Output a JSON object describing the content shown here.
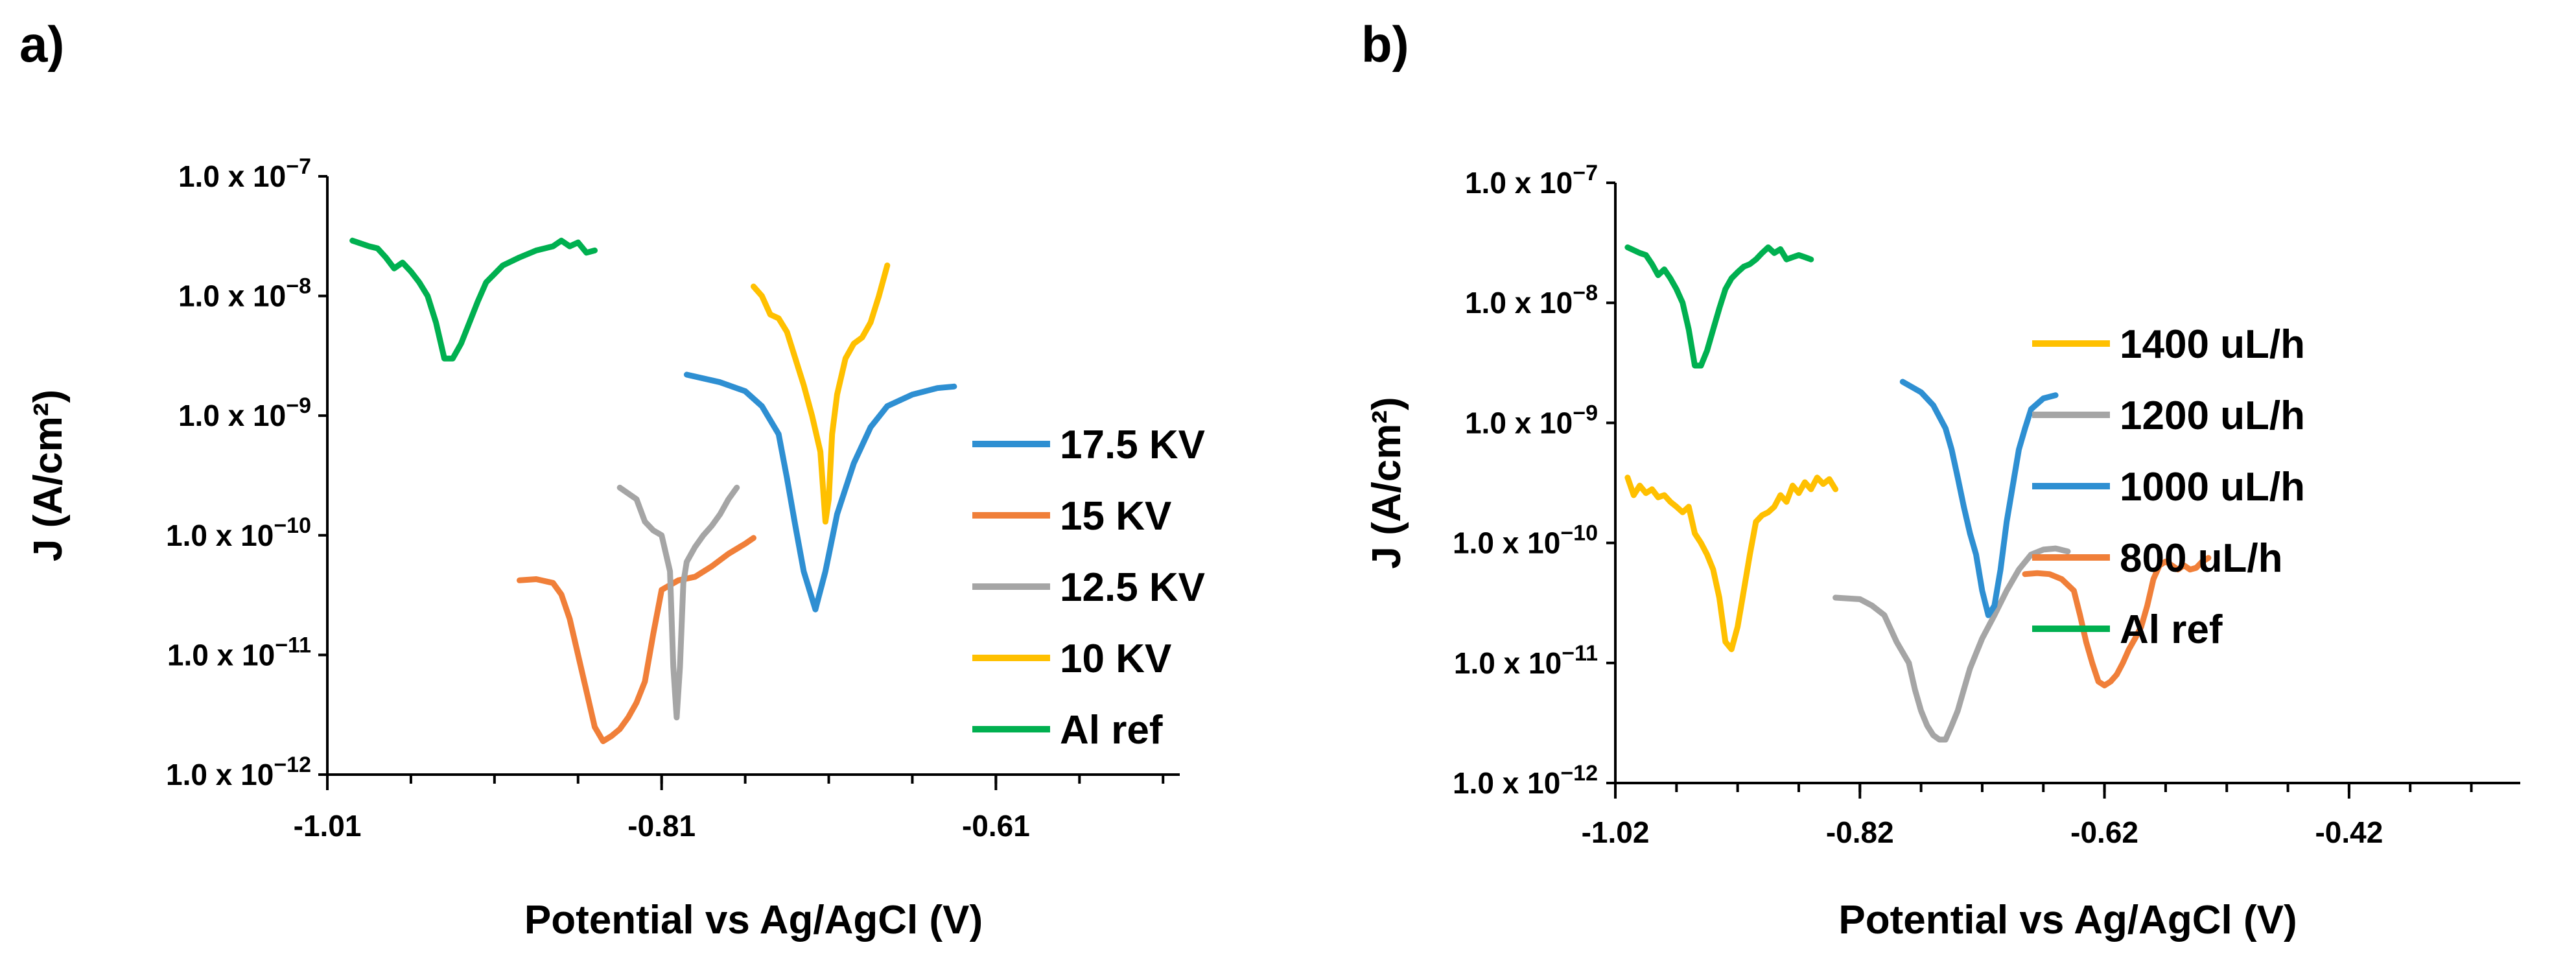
{
  "chart_data": [
    {
      "type": "line",
      "panel_label": "a)",
      "xlabel": "Potential vs Ag/AgCl (V)",
      "ylabel": "J (A/cm²)",
      "xlim": [
        -1.01,
        -0.5
      ],
      "xticks": [
        -1.01,
        -0.81,
        -0.61
      ],
      "xtick_labels": [
        "-1.01",
        "-0.81",
        "-0.61"
      ],
      "yscale": "log",
      "ylim": [
        1e-12,
        1e-07
      ],
      "ytick_labels": [
        {
          "value": 1e-07,
          "mantissa": "1.0 x 10",
          "exp": "−7"
        },
        {
          "value": 1e-08,
          "mantissa": "1.0 x 10",
          "exp": "−8"
        },
        {
          "value": 1e-09,
          "mantissa": "1.0 x 10",
          "exp": "−9"
        },
        {
          "value": 1e-10,
          "mantissa": "1.0 x 10",
          "exp": "−10"
        },
        {
          "value": 1e-11,
          "mantissa": "1.0 x 10",
          "exp": "−11"
        },
        {
          "value": 1e-12,
          "mantissa": "1.0 x 10",
          "exp": "−12"
        }
      ],
      "legend_position": "right",
      "series": [
        {
          "name": "17.5 KV",
          "color": "#2E8FD2",
          "x": [
            -0.795,
            -0.775,
            -0.76,
            -0.75,
            -0.74,
            -0.735,
            -0.73,
            -0.725,
            -0.718,
            -0.712,
            -0.705,
            -0.695,
            -0.685,
            -0.675,
            -0.66,
            -0.645,
            -0.635
          ],
          "y": [
            2.2e-09,
            1.9e-09,
            1.6e-09,
            1.2e-09,
            7e-10,
            3e-10,
            1.2e-10,
            5e-11,
            2.4e-11,
            5e-11,
            1.5e-10,
            4e-10,
            8e-10,
            1.2e-09,
            1.5e-09,
            1.7e-09,
            1.75e-09
          ]
        },
        {
          "name": "15 KV",
          "color": "#F07F39",
          "x": [
            -0.895,
            -0.885,
            -0.875,
            -0.87,
            -0.865,
            -0.86,
            -0.855,
            -0.85,
            -0.845,
            -0.84,
            -0.835,
            -0.83,
            -0.825,
            -0.82,
            -0.815,
            -0.81,
            -0.8,
            -0.79,
            -0.78,
            -0.77,
            -0.76,
            -0.755
          ],
          "y": [
            4.2e-11,
            4.3e-11,
            4e-11,
            3.2e-11,
            2e-11,
            1e-11,
            5e-12,
            2.5e-12,
            1.9e-12,
            2.1e-12,
            2.4e-12,
            3e-12,
            4e-12,
            6e-12,
            1.5e-11,
            3.5e-11,
            4.2e-11,
            4.5e-11,
            5.5e-11,
            7e-11,
            8.5e-11,
            9.5e-11
          ]
        },
        {
          "name": "12.5 KV",
          "color": "#A5A5A5",
          "x": [
            -0.835,
            -0.825,
            -0.82,
            -0.815,
            -0.81,
            -0.805,
            -0.803,
            -0.801,
            -0.799,
            -0.797,
            -0.795,
            -0.79,
            -0.785,
            -0.78,
            -0.775,
            -0.77,
            -0.765
          ],
          "y": [
            2.5e-10,
            2e-10,
            1.3e-10,
            1.1e-10,
            1e-10,
            5e-11,
            8e-12,
            3e-12,
            8e-12,
            4e-11,
            6e-11,
            8e-11,
            1e-10,
            1.2e-10,
            1.5e-10,
            2e-10,
            2.5e-10
          ]
        },
        {
          "name": "10 KV",
          "color": "#FFC000",
          "x": [
            -0.755,
            -0.75,
            -0.745,
            -0.74,
            -0.735,
            -0.73,
            -0.725,
            -0.72,
            -0.715,
            -0.712,
            -0.71,
            -0.708,
            -0.705,
            -0.7,
            -0.695,
            -0.69,
            -0.685,
            -0.68,
            -0.675
          ],
          "y": [
            1.2e-08,
            1e-08,
            7e-09,
            6.5e-09,
            5e-09,
            3e-09,
            1.8e-09,
            1e-09,
            5e-10,
            1.3e-10,
            2e-10,
            7e-10,
            1.5e-09,
            3e-09,
            4e-09,
            4.5e-09,
            6e-09,
            1e-08,
            1.8e-08
          ]
        },
        {
          "name": "Al ref",
          "color": "#00B050",
          "x": [
            -0.995,
            -0.985,
            -0.98,
            -0.975,
            -0.97,
            -0.965,
            -0.96,
            -0.955,
            -0.95,
            -0.945,
            -0.94,
            -0.935,
            -0.93,
            -0.925,
            -0.92,
            -0.915,
            -0.905,
            -0.895,
            -0.885,
            -0.875,
            -0.87,
            -0.865,
            -0.86,
            -0.855,
            -0.85
          ],
          "y": [
            2.9e-08,
            2.6e-08,
            2.5e-08,
            2.1e-08,
            1.7e-08,
            1.9e-08,
            1.6e-08,
            1.3e-08,
            1e-08,
            6e-09,
            3e-09,
            3e-09,
            4e-09,
            6e-09,
            9e-09,
            1.3e-08,
            1.8e-08,
            2.1e-08,
            2.4e-08,
            2.6e-08,
            2.9e-08,
            2.6e-08,
            2.8e-08,
            2.3e-08,
            2.4e-08
          ]
        }
      ],
      "legend_order": [
        "17.5 KV",
        "15 KV",
        "12.5 KV",
        "10 KV",
        "Al ref"
      ]
    },
    {
      "type": "line",
      "panel_label": "b)",
      "xlabel": "Potential vs Ag/AgCl (V)",
      "ylabel": "J (A/cm²)",
      "xlim": [
        -1.02,
        -0.28
      ],
      "xticks": [
        -1.02,
        -0.82,
        -0.62,
        -0.42
      ],
      "xtick_labels": [
        "-1.02",
        "-0.82",
        "-0.62",
        "-0.42"
      ],
      "yscale": "log",
      "ylim": [
        1e-12,
        1e-07
      ],
      "ytick_labels": [
        {
          "value": 1e-07,
          "mantissa": "1.0 x 10",
          "exp": "−7"
        },
        {
          "value": 1e-08,
          "mantissa": "1.0 x 10",
          "exp": "−8"
        },
        {
          "value": 1e-09,
          "mantissa": "1.0 x 10",
          "exp": "−9"
        },
        {
          "value": 1e-10,
          "mantissa": "1.0 x 10",
          "exp": "−10"
        },
        {
          "value": 1e-11,
          "mantissa": "1.0 x 10",
          "exp": "−11"
        },
        {
          "value": 1e-12,
          "mantissa": "1.0 x 10",
          "exp": "−12"
        }
      ],
      "legend_position": "right",
      "series": [
        {
          "name": "1400 uL/h",
          "color": "#FFC000",
          "x": [
            -1.01,
            -1.005,
            -1.0,
            -0.995,
            -0.99,
            -0.985,
            -0.98,
            -0.975,
            -0.97,
            -0.965,
            -0.96,
            -0.955,
            -0.95,
            -0.945,
            -0.94,
            -0.935,
            -0.93,
            -0.925,
            -0.92,
            -0.915,
            -0.91,
            -0.905,
            -0.9,
            -0.895,
            -0.89,
            -0.885,
            -0.88,
            -0.875,
            -0.87,
            -0.865,
            -0.86,
            -0.855,
            -0.85,
            -0.845,
            -0.84
          ],
          "y": [
            3.5e-10,
            2.5e-10,
            3e-10,
            2.6e-10,
            2.8e-10,
            2.4e-10,
            2.5e-10,
            2.2e-10,
            2e-10,
            1.8e-10,
            2e-10,
            1.2e-10,
            1e-10,
            8e-11,
            6e-11,
            3.5e-11,
            1.5e-11,
            1.3e-11,
            2e-11,
            4e-11,
            8e-11,
            1.5e-10,
            1.7e-10,
            1.8e-10,
            2e-10,
            2.5e-10,
            2.2e-10,
            3e-10,
            2.6e-10,
            3.2e-10,
            2.8e-10,
            3.5e-10,
            3.1e-10,
            3.4e-10,
            2.8e-10
          ]
        },
        {
          "name": "1200 uL/h",
          "color": "#A5A5A5",
          "x": [
            -0.84,
            -0.82,
            -0.81,
            -0.8,
            -0.79,
            -0.78,
            -0.775,
            -0.77,
            -0.765,
            -0.76,
            -0.755,
            -0.75,
            -0.745,
            -0.74,
            -0.735,
            -0.73,
            -0.725,
            -0.72,
            -0.71,
            -0.7,
            -0.69,
            -0.68,
            -0.67,
            -0.66,
            -0.65
          ],
          "y": [
            3.5e-11,
            3.4e-11,
            3e-11,
            2.5e-11,
            1.5e-11,
            1e-11,
            6e-12,
            4e-12,
            3e-12,
            2.5e-12,
            2.3e-12,
            2.3e-12,
            3e-12,
            4e-12,
            6e-12,
            9e-12,
            1.2e-11,
            1.6e-11,
            2.5e-11,
            4e-11,
            6e-11,
            8e-11,
            8.8e-11,
            9e-11,
            8.5e-11
          ]
        },
        {
          "name": "1000 uL/h",
          "color": "#2E8FD2",
          "x": [
            -0.785,
            -0.77,
            -0.76,
            -0.75,
            -0.745,
            -0.74,
            -0.735,
            -0.73,
            -0.725,
            -0.72,
            -0.715,
            -0.71,
            -0.705,
            -0.7,
            -0.695,
            -0.69,
            -0.685,
            -0.68,
            -0.67,
            -0.66
          ],
          "y": [
            2.2e-09,
            1.8e-09,
            1.4e-09,
            9e-10,
            6e-10,
            3.5e-10,
            2e-10,
            1.2e-10,
            8e-11,
            4e-11,
            2.5e-11,
            3e-11,
            6e-11,
            1.5e-10,
            3e-10,
            6e-10,
            9e-10,
            1.3e-09,
            1.6e-09,
            1.7e-09
          ]
        },
        {
          "name": "800 uL/h",
          "color": "#F07F39",
          "x": [
            -0.685,
            -0.675,
            -0.665,
            -0.655,
            -0.645,
            -0.64,
            -0.635,
            -0.63,
            -0.625,
            -0.62,
            -0.615,
            -0.61,
            -0.605,
            -0.6,
            -0.595,
            -0.59,
            -0.585,
            -0.58,
            -0.575,
            -0.57,
            -0.565,
            -0.56,
            -0.555,
            -0.55,
            -0.545,
            -0.54,
            -0.535
          ],
          "y": [
            5.5e-11,
            5.6e-11,
            5.5e-11,
            5e-11,
            4e-11,
            2.5e-11,
            1.5e-11,
            1e-11,
            7e-12,
            6.5e-12,
            7e-12,
            8e-12,
            1e-11,
            1.3e-11,
            1.6e-11,
            2e-11,
            3e-11,
            5e-11,
            6.5e-11,
            7e-11,
            6.5e-11,
            6e-11,
            6.5e-11,
            6e-11,
            6.2e-11,
            7e-11,
            7.5e-11
          ]
        },
        {
          "name": "Al ref",
          "color": "#00B050",
          "x": [
            -1.01,
            -1.0,
            -0.995,
            -0.99,
            -0.985,
            -0.98,
            -0.975,
            -0.97,
            -0.965,
            -0.96,
            -0.955,
            -0.95,
            -0.945,
            -0.94,
            -0.935,
            -0.93,
            -0.925,
            -0.92,
            -0.915,
            -0.91,
            -0.905,
            -0.9,
            -0.895,
            -0.89,
            -0.885,
            -0.88,
            -0.875,
            -0.87,
            -0.865,
            -0.86
          ],
          "y": [
            2.9e-08,
            2.6e-08,
            2.5e-08,
            2.1e-08,
            1.7e-08,
            1.9e-08,
            1.6e-08,
            1.3e-08,
            1e-08,
            6e-09,
            3e-09,
            3e-09,
            4e-09,
            6e-09,
            9e-09,
            1.3e-08,
            1.6e-08,
            1.8e-08,
            2e-08,
            2.1e-08,
            2.3e-08,
            2.6e-08,
            2.9e-08,
            2.6e-08,
            2.8e-08,
            2.3e-08,
            2.4e-08,
            2.5e-08,
            2.4e-08,
            2.3e-08
          ]
        }
      ],
      "legend_order": [
        "1400 uL/h",
        "1200 uL/h",
        "1000 uL/h",
        "800 uL/h",
        "Al ref"
      ]
    }
  ]
}
